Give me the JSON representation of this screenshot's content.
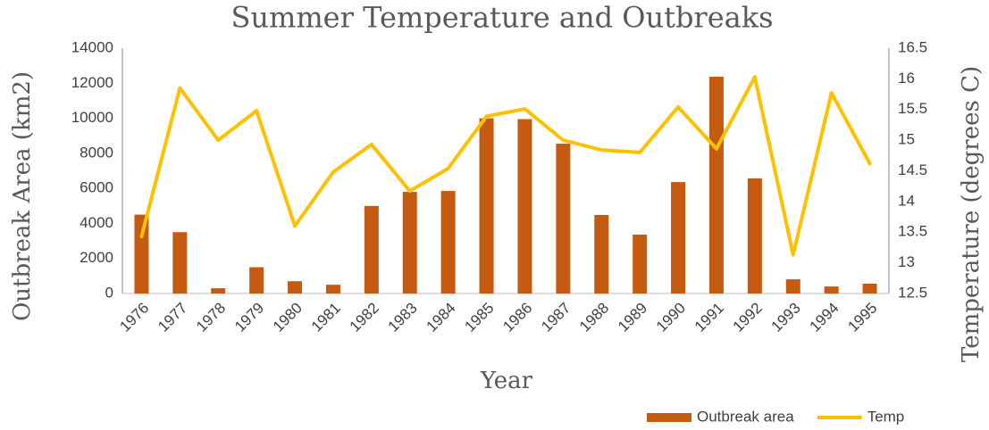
{
  "chart_data": {
    "type": "bar_line",
    "title": "Summer Temperature and Outbreaks",
    "xlabel": "Year",
    "ylabel": "Outbreak Area (km2)",
    "y2label": "Temperature (degrees C)",
    "categories": [
      "1976",
      "1977",
      "1978",
      "1979",
      "1980",
      "1981",
      "1982",
      "1983",
      "1984",
      "1985",
      "1986",
      "1987",
      "1988",
      "1989",
      "1990",
      "1991",
      "1992",
      "1993",
      "1994",
      "1995"
    ],
    "series": [
      {
        "name": "Outbreak area",
        "type": "bar",
        "color": "#c55a11",
        "values": [
          4500,
          3500,
          300,
          1500,
          700,
          500,
          5000,
          5800,
          5850,
          10000,
          9950,
          8550,
          4480,
          3360,
          6360,
          12370,
          6570,
          810,
          400,
          560
        ]
      },
      {
        "name": "Temp",
        "type": "line",
        "axis": "y2",
        "color": "#ffc000",
        "values": [
          13.43,
          15.85,
          15.0,
          15.48,
          13.6,
          14.48,
          14.93,
          14.17,
          14.54,
          15.39,
          15.51,
          15.0,
          14.84,
          14.8,
          15.54,
          14.86,
          16.03,
          13.13,
          15.77,
          14.62
        ]
      }
    ],
    "ylim": [
      0,
      14000
    ],
    "yticks": [
      0,
      2000,
      4000,
      6000,
      8000,
      10000,
      12000,
      14000
    ],
    "y2lim": [
      12.5,
      16.5
    ],
    "y2ticks": [
      12.5,
      13,
      13.5,
      14,
      14.5,
      15,
      15.5,
      16,
      16.5
    ],
    "grid": false,
    "legend": "bottom-right"
  }
}
